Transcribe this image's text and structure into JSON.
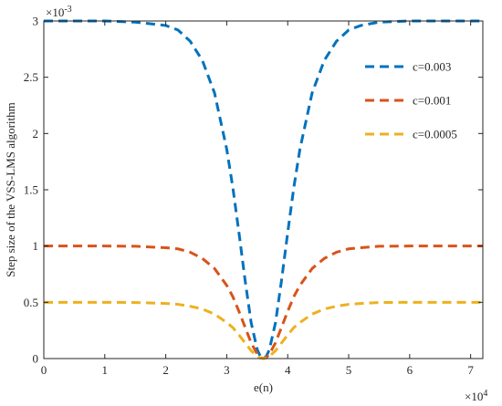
{
  "chart_data": {
    "type": "line",
    "title": "",
    "xlabel": "e(n)",
    "ylabel": "Step size of the VSS-LMS algorithm",
    "x_exponent_label": "×10",
    "x_exponent_power": "4",
    "y_exponent_label": "×10",
    "y_exponent_power": "-3",
    "xlim": [
      0,
      72000
    ],
    "ylim": [
      0,
      0.003
    ],
    "x_ticks": [
      0,
      10000,
      20000,
      30000,
      40000,
      50000,
      60000,
      70000
    ],
    "x_tick_labels": [
      "0",
      "1",
      "2",
      "3",
      "4",
      "5",
      "6",
      "7"
    ],
    "y_ticks": [
      0,
      0.0005,
      0.001,
      0.0015,
      0.002,
      0.0025,
      0.003
    ],
    "y_tick_labels": [
      "0",
      "0.5",
      "1",
      "1.5",
      "2",
      "2.5",
      "3"
    ],
    "grid": false,
    "legend_position": "top-right",
    "x": [
      0,
      5000,
      10000,
      15000,
      20000,
      22000,
      24000,
      26000,
      28000,
      30000,
      31000,
      32000,
      33000,
      34000,
      35000,
      35500,
      36000,
      36500,
      37000,
      38000,
      39000,
      40000,
      41000,
      42000,
      44000,
      46000,
      48000,
      50000,
      52000,
      55000,
      60000,
      65000,
      72000
    ],
    "series": [
      {
        "name": "c=0.003",
        "color": "#0072BD",
        "values": [
          0.003,
          0.003,
          0.003,
          0.00299,
          0.00296,
          0.00292,
          0.00282,
          0.00265,
          0.00236,
          0.00186,
          0.00152,
          0.00112,
          0.0007,
          0.00032,
          8e-05,
          2e-05,
          0.0,
          2e-05,
          8e-05,
          0.00032,
          0.0007,
          0.00112,
          0.00152,
          0.00186,
          0.00236,
          0.00265,
          0.00282,
          0.00292,
          0.00296,
          0.00299,
          0.003,
          0.003,
          0.003
        ]
      },
      {
        "name": "c=0.001",
        "color": "#D95319",
        "values": [
          0.001,
          0.001,
          0.001,
          0.000998,
          0.000985,
          0.000975,
          0.000945,
          0.00089,
          0.0008,
          0.00065,
          0.00055,
          0.00042,
          0.00028,
          0.00014,
          4e-05,
          1e-05,
          0.0,
          1e-05,
          4e-05,
          0.00014,
          0.00028,
          0.00042,
          0.00055,
          0.00065,
          0.0008,
          0.00089,
          0.000945,
          0.000975,
          0.000985,
          0.000998,
          0.001,
          0.001,
          0.001
        ]
      },
      {
        "name": "c=0.0005",
        "color": "#EDB120",
        "values": [
          0.0005,
          0.0005,
          0.0005,
          0.000498,
          0.00049,
          0.000482,
          0.000465,
          0.00044,
          0.000395,
          0.00032,
          0.000275,
          0.00021,
          0.00014,
          7e-05,
          2e-05,
          5e-06,
          0.0,
          5e-06,
          2e-05,
          7e-05,
          0.00014,
          0.00021,
          0.000275,
          0.00032,
          0.000395,
          0.00044,
          0.000465,
          0.000482,
          0.00049,
          0.000498,
          0.0005,
          0.0005,
          0.0005
        ]
      }
    ]
  }
}
